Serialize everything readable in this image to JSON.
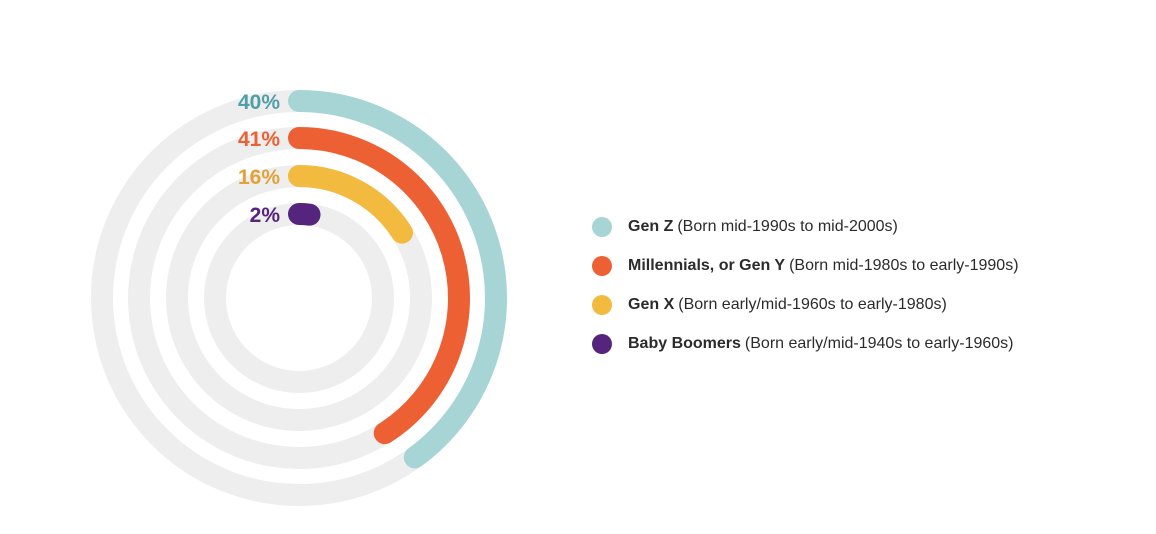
{
  "chart_data": {
    "type": "radial-bar",
    "series": [
      {
        "name": "Gen Z",
        "description": "(Born mid-1990s to mid-2000s)",
        "value": 40,
        "label": "40%",
        "color": "#a7d5d5"
      },
      {
        "name": "Millennials, or Gen Y",
        "description": "(Born mid-1980s to early-1990s)",
        "value": 41,
        "label": "41%",
        "color": "#ec6034"
      },
      {
        "name": "Gen X",
        "description": "(Born early/mid-1960s to early-1980s)",
        "value": 16,
        "label": "16%",
        "color": "#f2bb40"
      },
      {
        "name": "Baby Boomers",
        "description": "(Born early/mid-1940s to early-1960s)",
        "value": 2,
        "label": "2%",
        "color": "#55247d"
      }
    ],
    "label_colors": [
      "#4f9ea8",
      "#ec6034",
      "#e2a13a",
      "#55247d"
    ],
    "track_color": "#eeeeee",
    "max_value": 100,
    "legend_position": "right"
  }
}
